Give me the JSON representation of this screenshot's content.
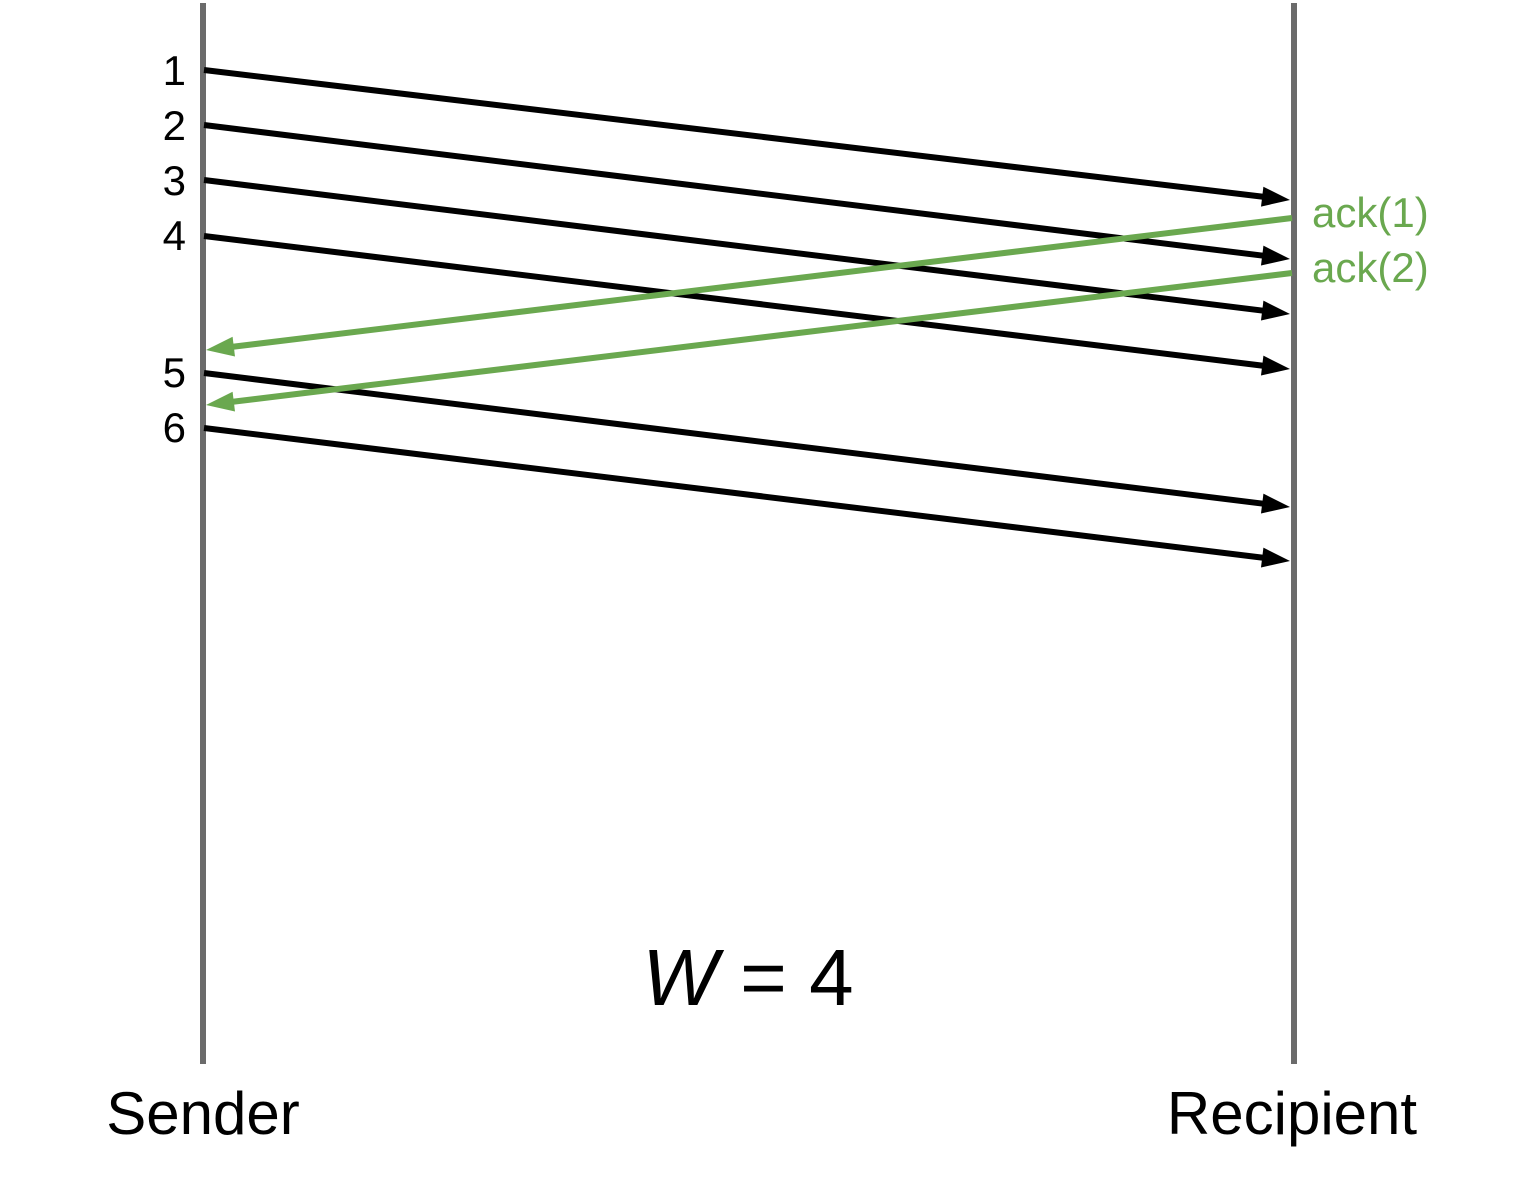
{
  "colors": {
    "timeline": "#6b6b6b",
    "packet": "#000000",
    "ack": "#6aa84f",
    "background": "#ffffff"
  },
  "participants": {
    "sender": "Sender",
    "recipient": "Recipient"
  },
  "window_label": {
    "variable": "W",
    "rest": " = 4"
  },
  "packets": [
    {
      "label": "1"
    },
    {
      "label": "2"
    },
    {
      "label": "3"
    },
    {
      "label": "4"
    },
    {
      "label": "5"
    },
    {
      "label": "6"
    }
  ],
  "acks": [
    {
      "label": "ack(1)"
    },
    {
      "label": "ack(2)"
    }
  ]
}
